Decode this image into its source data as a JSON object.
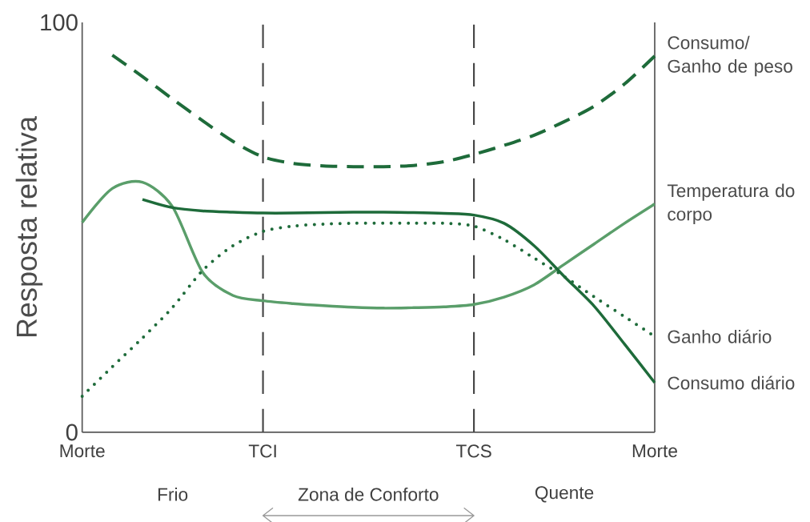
{
  "chart_data": {
    "type": "line",
    "ylabel": "Resposta relativa",
    "categories": [
      "Morte",
      null,
      null,
      null,
      null,
      null,
      "TCI",
      null,
      null,
      null,
      null,
      null,
      null,
      "TCS",
      null,
      null,
      null,
      null,
      null,
      "Morte"
    ],
    "ylim": [
      0,
      100
    ],
    "yticks": [
      0,
      100
    ],
    "ref_lines": [
      {
        "axis": "x",
        "value": "TCI",
        "line_style": "dashed",
        "color": "#444444"
      },
      {
        "axis": "x",
        "value": "TCS",
        "line_style": "dashed",
        "color": "#444444"
      }
    ],
    "annotations": [
      "Frio",
      "Zona de Conforto",
      "Quente"
    ],
    "series": [
      {
        "name": "Consumo/ Ganho de peso",
        "color": "#1e6b3a",
        "line_style": "dashed",
        "values": [
          null,
          92,
          86.8,
          81.3,
          76,
          71,
          67.2,
          65.6,
          65,
          64.8,
          64.8,
          65.1,
          66,
          67.8,
          70,
          72.5,
          75.8,
          79.6,
          85,
          91.8
        ]
      },
      {
        "name": "Temperatura do corpo",
        "color": "#5a9e6a",
        "line_style": "solid",
        "values": [
          51.2,
          59.5,
          61,
          55,
          39,
          33.4,
          32.1,
          31.4,
          30.9,
          30.5,
          30.3,
          30.4,
          30.6,
          31.2,
          33,
          36,
          41,
          46,
          51,
          55.7
        ]
      },
      {
        "name": "Ganho diário",
        "color": "#1e6b3a",
        "line_style": "dotted",
        "values": [
          8.8,
          16,
          23,
          30.5,
          39.5,
          45.5,
          49,
          50.3,
          50.8,
          51,
          51,
          51,
          51,
          50.3,
          47,
          42.5,
          38,
          33,
          28.2,
          23.4
        ]
      },
      {
        "name": "Consumo diário",
        "color": "#1e6b3a",
        "line_style": "solid",
        "values": [
          null,
          null,
          56.8,
          54.8,
          54,
          53.7,
          53.5,
          53.5,
          53.6,
          53.7,
          53.7,
          53.6,
          53.4,
          53,
          51,
          45.5,
          38,
          30.7,
          21.5,
          12.1
        ]
      }
    ]
  }
}
